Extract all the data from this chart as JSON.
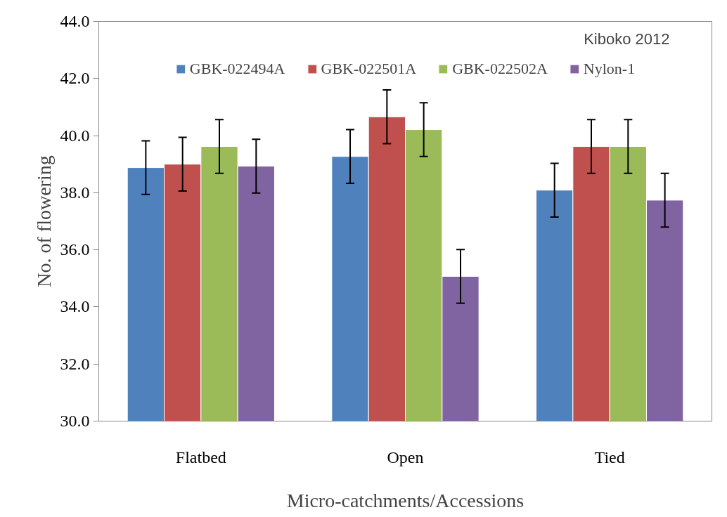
{
  "chart_data": {
    "type": "bar",
    "categories": [
      "Flatbed",
      "Open",
      "Tied"
    ],
    "series": [
      {
        "name": "GBK-022494A",
        "color": "#4f81bd",
        "values": [
          38.88,
          39.27,
          38.09
        ],
        "errors": [
          0.94,
          0.94,
          0.94
        ]
      },
      {
        "name": "GBK-022501A",
        "color": "#c0504d",
        "values": [
          39.0,
          40.66,
          39.62
        ],
        "errors": [
          0.94,
          0.94,
          0.94
        ]
      },
      {
        "name": "GBK-022502A",
        "color": "#9bbb59",
        "values": [
          39.62,
          40.21,
          39.62
        ],
        "errors": [
          0.94,
          0.94,
          0.94
        ]
      },
      {
        "name": "Nylon-1",
        "color": "#8064a2",
        "values": [
          38.93,
          35.07,
          37.74
        ],
        "errors": [
          0.94,
          0.94,
          0.94
        ]
      }
    ],
    "xlabel": "Micro-catchments/Accessions",
    "ylabel": "No. of flowering",
    "ylim": [
      30.0,
      44.0
    ],
    "yticks": [
      {
        "value": 30,
        "label": "30.0"
      },
      {
        "value": 32,
        "label": "32.0"
      },
      {
        "value": 34,
        "label": "34.0"
      },
      {
        "value": 36,
        "label": "36.0"
      },
      {
        "value": 38,
        "label": "38.0"
      },
      {
        "value": 40,
        "label": "40.0"
      },
      {
        "value": 42,
        "label": "42.0"
      },
      {
        "value": 44,
        "label": "44.0"
      }
    ],
    "annotations": [
      "Kiboko 2012"
    ],
    "legend": "top",
    "grid": false
  }
}
